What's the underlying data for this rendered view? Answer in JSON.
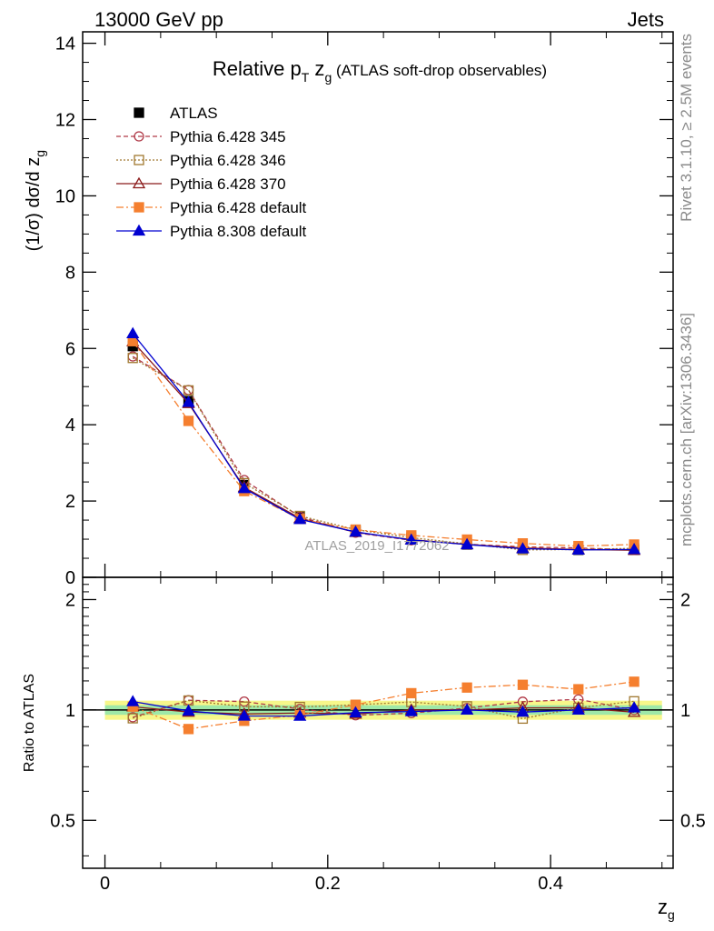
{
  "header": {
    "left": "13000 GeV pp",
    "right": "Jets"
  },
  "side_labels": {
    "rivet": "Rivet 3.1.10, ≥ 2.5M events",
    "mcplots": "mcplots.cern.ch [arXiv:1306.3436]"
  },
  "chart_data": [
    {
      "type": "line",
      "title": "Relative p_T z_g (ATLAS soft-drop observables)",
      "title_parts": {
        "main": "Relative p",
        "sub1": "T",
        "mid": " z",
        "sub2": "g",
        "rest": " (ATLAS soft-drop observables)"
      },
      "ylabel_parts": {
        "main": "(1/σ) dσ/d z",
        "sub": "g"
      },
      "watermark": "ATLAS_2019_I1772062",
      "x": [
        0.025,
        0.075,
        0.125,
        0.175,
        0.225,
        0.275,
        0.325,
        0.375,
        0.425,
        0.475
      ],
      "xlim": [
        -0.02,
        0.51
      ],
      "ylim": [
        0,
        14.3
      ],
      "y_ticks": [
        "0",
        "2",
        "4",
        "6",
        "8",
        "10",
        "12",
        "14"
      ],
      "y_tick_values": [
        0,
        2,
        4,
        6,
        8,
        10,
        12,
        14
      ],
      "legend_position": "top-left",
      "series": [
        {
          "name": "ATLAS",
          "color": "#000000",
          "marker": "square-filled",
          "dash": "none",
          "values": [
            6.06,
            4.62,
            2.42,
            1.58,
            1.21,
            0.99,
            0.86,
            0.76,
            0.72,
            0.72
          ]
        },
        {
          "name": "Pythia 6.428 345",
          "color": "#b03a48",
          "marker": "circle-open",
          "dash": "5,3",
          "values": [
            5.79,
            4.91,
            2.55,
            1.59,
            1.17,
            0.97,
            0.87,
            0.8,
            0.77,
            0.72
          ]
        },
        {
          "name": "Pythia 6.428 346",
          "color": "#a07830",
          "marker": "square-open",
          "dash": "2,2",
          "values": [
            5.75,
            4.9,
            2.47,
            1.61,
            1.25,
            1.04,
            0.88,
            0.72,
            0.73,
            0.76
          ]
        },
        {
          "name": "Pythia 6.428 370",
          "color": "#8b1a1a",
          "marker": "triangle-open",
          "dash": "none",
          "values": [
            6.18,
            4.56,
            2.36,
            1.55,
            1.18,
            0.99,
            0.86,
            0.77,
            0.73,
            0.71
          ]
        },
        {
          "name": "Pythia 6.428 default",
          "color": "#f57f2f",
          "marker": "square-filled",
          "dash": "8,3,2,3",
          "values": [
            6.19,
            4.1,
            2.26,
            1.53,
            1.25,
            1.1,
            0.99,
            0.89,
            0.82,
            0.86
          ]
        },
        {
          "name": "Pythia 8.308 default",
          "color": "#0000d0",
          "marker": "triangle-filled",
          "dash": "none",
          "values": [
            6.39,
            4.59,
            2.33,
            1.52,
            1.19,
            0.98,
            0.86,
            0.75,
            0.72,
            0.73
          ]
        }
      ]
    },
    {
      "type": "line",
      "ylabel": "Ratio to ATLAS",
      "xlabel_parts": {
        "main": "z",
        "sub": "g"
      },
      "x": [
        0.025,
        0.075,
        0.125,
        0.175,
        0.225,
        0.275,
        0.325,
        0.375,
        0.425,
        0.475
      ],
      "xlim": [
        -0.02,
        0.51
      ],
      "ylim": [
        0.37,
        2.3
      ],
      "scale": "log",
      "y_ticks": [
        "0.5",
        "1",
        "2"
      ],
      "y_tick_values": [
        0.5,
        1,
        2
      ],
      "x_ticks": [
        "0",
        "0.2",
        "0.4"
      ],
      "x_tick_values": [
        0,
        0.2,
        0.4
      ],
      "band_inner": [
        0.97,
        1.03
      ],
      "band_outer": [
        0.94,
        1.06
      ],
      "series": [
        {
          "name": "Pythia 6.428 345",
          "color": "#b03a48",
          "marker": "circle-open",
          "dash": "5,3",
          "values": [
            0.955,
            1.063,
            1.054,
            1.006,
            0.967,
            0.98,
            1.012,
            1.053,
            1.069,
            1.0
          ]
        },
        {
          "name": "Pythia 6.428 346",
          "color": "#a07830",
          "marker": "square-open",
          "dash": "2,2",
          "values": [
            0.949,
            1.061,
            1.021,
            1.019,
            1.033,
            1.051,
            1.023,
            0.947,
            1.014,
            1.056
          ]
        },
        {
          "name": "Pythia 6.428 370",
          "color": "#8b1a1a",
          "marker": "triangle-open",
          "dash": "none",
          "values": [
            1.02,
            0.987,
            0.975,
            0.981,
            0.975,
            1.0,
            1.0,
            1.013,
            1.014,
            0.986
          ]
        },
        {
          "name": "Pythia 6.428 default",
          "color": "#f57f2f",
          "marker": "square-filled",
          "dash": "8,3,2,3",
          "values": [
            1.021,
            0.887,
            0.934,
            0.968,
            1.033,
            1.111,
            1.151,
            1.171,
            1.139,
            1.194
          ]
        },
        {
          "name": "Pythia 8.308 default",
          "color": "#0000d0",
          "marker": "triangle-filled",
          "dash": "none",
          "values": [
            1.054,
            0.994,
            0.963,
            0.962,
            0.983,
            0.99,
            1.0,
            0.987,
            1.0,
            1.014
          ]
        }
      ]
    }
  ]
}
